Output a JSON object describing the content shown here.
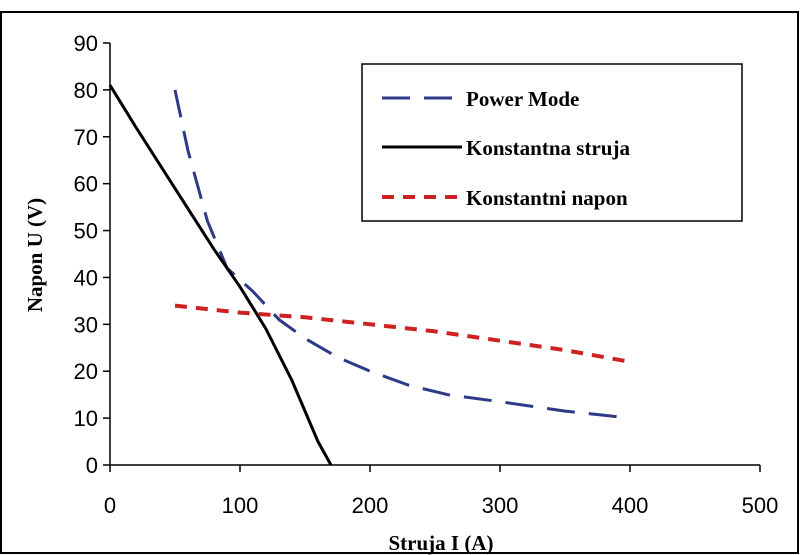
{
  "chart_data": {
    "type": "line",
    "title": "",
    "xlabel": "Struja I (A)",
    "ylabel": "Napon U (V)",
    "xlim": [
      0,
      500
    ],
    "ylim": [
      0,
      90
    ],
    "x_ticks": [
      "0",
      "100",
      "200",
      "300",
      "400",
      "500"
    ],
    "y_ticks": [
      "0",
      "10",
      "20",
      "30",
      "40",
      "50",
      "60",
      "70",
      "80",
      "90"
    ],
    "grid": false,
    "legend_position": "top-right",
    "series": [
      {
        "name": "Power Mode",
        "color": "#2e3a87",
        "style": "long-dash",
        "x": [
          50,
          60,
          75,
          90,
          110,
          130,
          150,
          175,
          200,
          230,
          260,
          300,
          350,
          400
        ],
        "y": [
          80,
          67,
          52,
          42,
          37,
          31,
          27,
          23,
          20,
          17,
          15,
          13.5,
          11.5,
          10
        ]
      },
      {
        "name": "Konstantna struja",
        "color": "#000000",
        "style": "solid",
        "x": [
          0,
          20,
          50,
          80,
          100,
          120,
          140,
          160,
          170
        ],
        "y": [
          81,
          72,
          59,
          46,
          38,
          29,
          18,
          5,
          0
        ]
      },
      {
        "name": "Konstantni napon",
        "color": "#cc2222",
        "style": "short-dash",
        "x": [
          50,
          100,
          150,
          200,
          250,
          300,
          350,
          400
        ],
        "y": [
          34,
          32.5,
          31.5,
          30,
          28.5,
          26.5,
          24.5,
          22
        ]
      }
    ]
  }
}
